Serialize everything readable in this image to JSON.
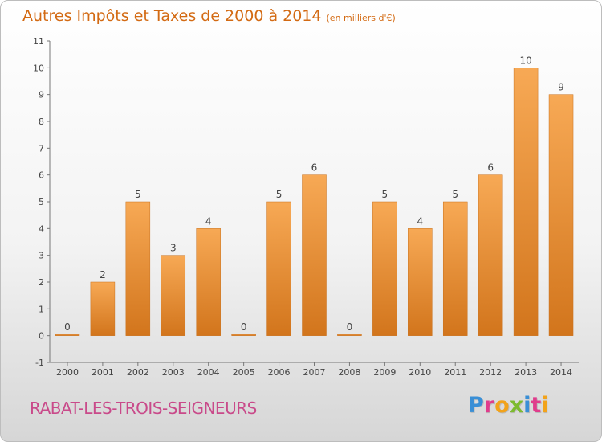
{
  "header": {
    "title": "Autres Impôts et Taxes de 2000 à 2014",
    "unit": "(en milliers d'€)"
  },
  "footer": {
    "place": "RABAT-LES-TROIS-SEIGNEURS",
    "logo_letters": [
      "P",
      "r",
      "o",
      "x",
      "i",
      "t",
      "i"
    ],
    "logo_colors": [
      "#3a8fd6",
      "#e03c8c",
      "#f2a31b",
      "#7dbb2f",
      "#3a8fd6",
      "#e03c8c",
      "#f2a31b"
    ]
  },
  "colors": {
    "bar_light": "#f7a955",
    "bar_dark": "#d2751c",
    "title": "#d36a13",
    "place": "#c94a8a"
  },
  "chart_data": {
    "type": "bar",
    "title": "Autres Impôts et Taxes de 2000 à 2014",
    "subtitle": "(en milliers d'€)",
    "categories": [
      "2000",
      "2001",
      "2002",
      "2003",
      "2004",
      "2005",
      "2006",
      "2007",
      "2008",
      "2009",
      "2010",
      "2011",
      "2012",
      "2013",
      "2014"
    ],
    "values": [
      0,
      2,
      5,
      3,
      4,
      0,
      5,
      6,
      0,
      5,
      4,
      5,
      6,
      10,
      9
    ],
    "ylim": [
      -1,
      11
    ],
    "yticks": [
      "-1",
      "0",
      "1",
      "2",
      "3",
      "4",
      "5",
      "6",
      "7",
      "8",
      "9",
      "10",
      "11"
    ],
    "grid": false,
    "legend": "none"
  }
}
